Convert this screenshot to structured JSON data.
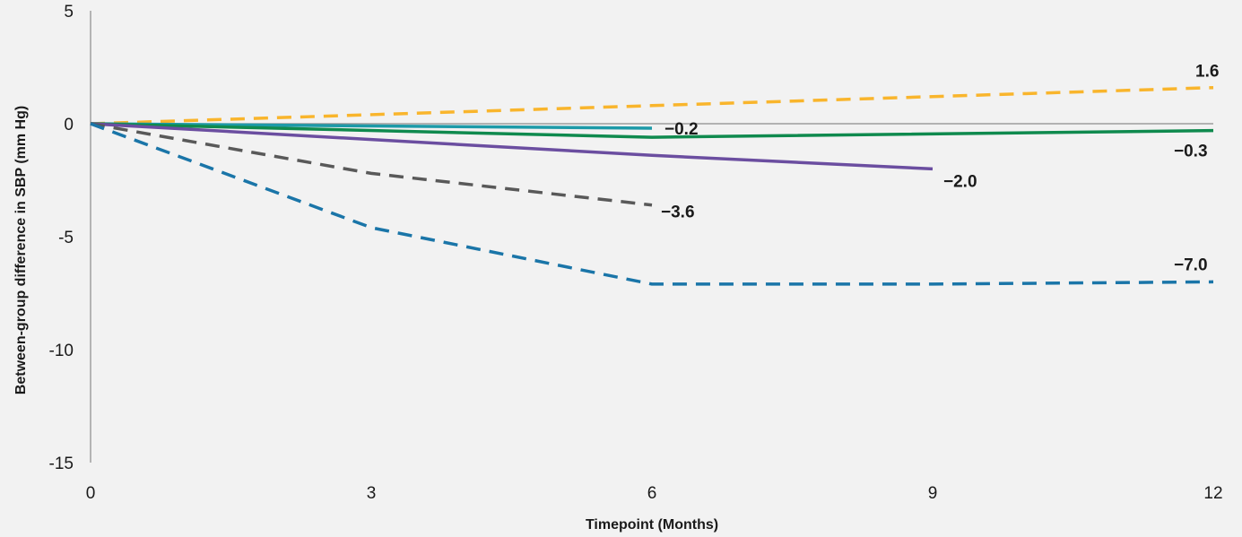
{
  "chart_data": {
    "type": "line",
    "title": "",
    "xlabel": "Timepoint (Months)",
    "ylabel": "Between-group difference in SBP (mm Hg)",
    "xlim": [
      0,
      12
    ],
    "ylim": [
      -15,
      5
    ],
    "x_ticks": [
      0,
      3,
      6,
      9,
      12
    ],
    "x_tick_labels": [
      "0",
      "3",
      "6",
      "9",
      "12"
    ],
    "y_ticks": [
      5,
      0,
      -5,
      -10,
      -15
    ],
    "y_tick_labels": [
      "5",
      "0",
      "-5",
      "-10",
      "-15"
    ],
    "grid": false,
    "legend": "none",
    "series": [
      {
        "color": "#f9b52c",
        "dash": "dashed",
        "points": [
          [
            0,
            0
          ],
          [
            6,
            0.8
          ],
          [
            12,
            1.6
          ]
        ],
        "end_label": "1.6"
      },
      {
        "color": "#1d9aa8",
        "dash": "solid",
        "points": [
          [
            0,
            0
          ],
          [
            6,
            -0.2
          ]
        ],
        "end_label": "−0.2"
      },
      {
        "color": "#0f8a4e",
        "dash": "solid",
        "points": [
          [
            0,
            0
          ],
          [
            6,
            -0.6
          ],
          [
            12,
            -0.3
          ]
        ],
        "end_label": "−0.3"
      },
      {
        "color": "#6b4ea0",
        "dash": "solid",
        "points": [
          [
            0,
            0
          ],
          [
            6,
            -1.4
          ],
          [
            9,
            -2.0
          ]
        ],
        "end_label": "−2.0"
      },
      {
        "color": "#595959",
        "dash": "dashed",
        "points": [
          [
            0,
            0
          ],
          [
            3,
            -2.2
          ],
          [
            6,
            -3.6
          ]
        ],
        "end_label": "−3.6"
      },
      {
        "color": "#1a75a8",
        "dash": "dashed",
        "points": [
          [
            0,
            0
          ],
          [
            3,
            -4.6
          ],
          [
            6,
            -7.1
          ],
          [
            9,
            -7.1
          ],
          [
            12,
            -7.0
          ]
        ],
        "end_label": "−7.0"
      }
    ]
  }
}
